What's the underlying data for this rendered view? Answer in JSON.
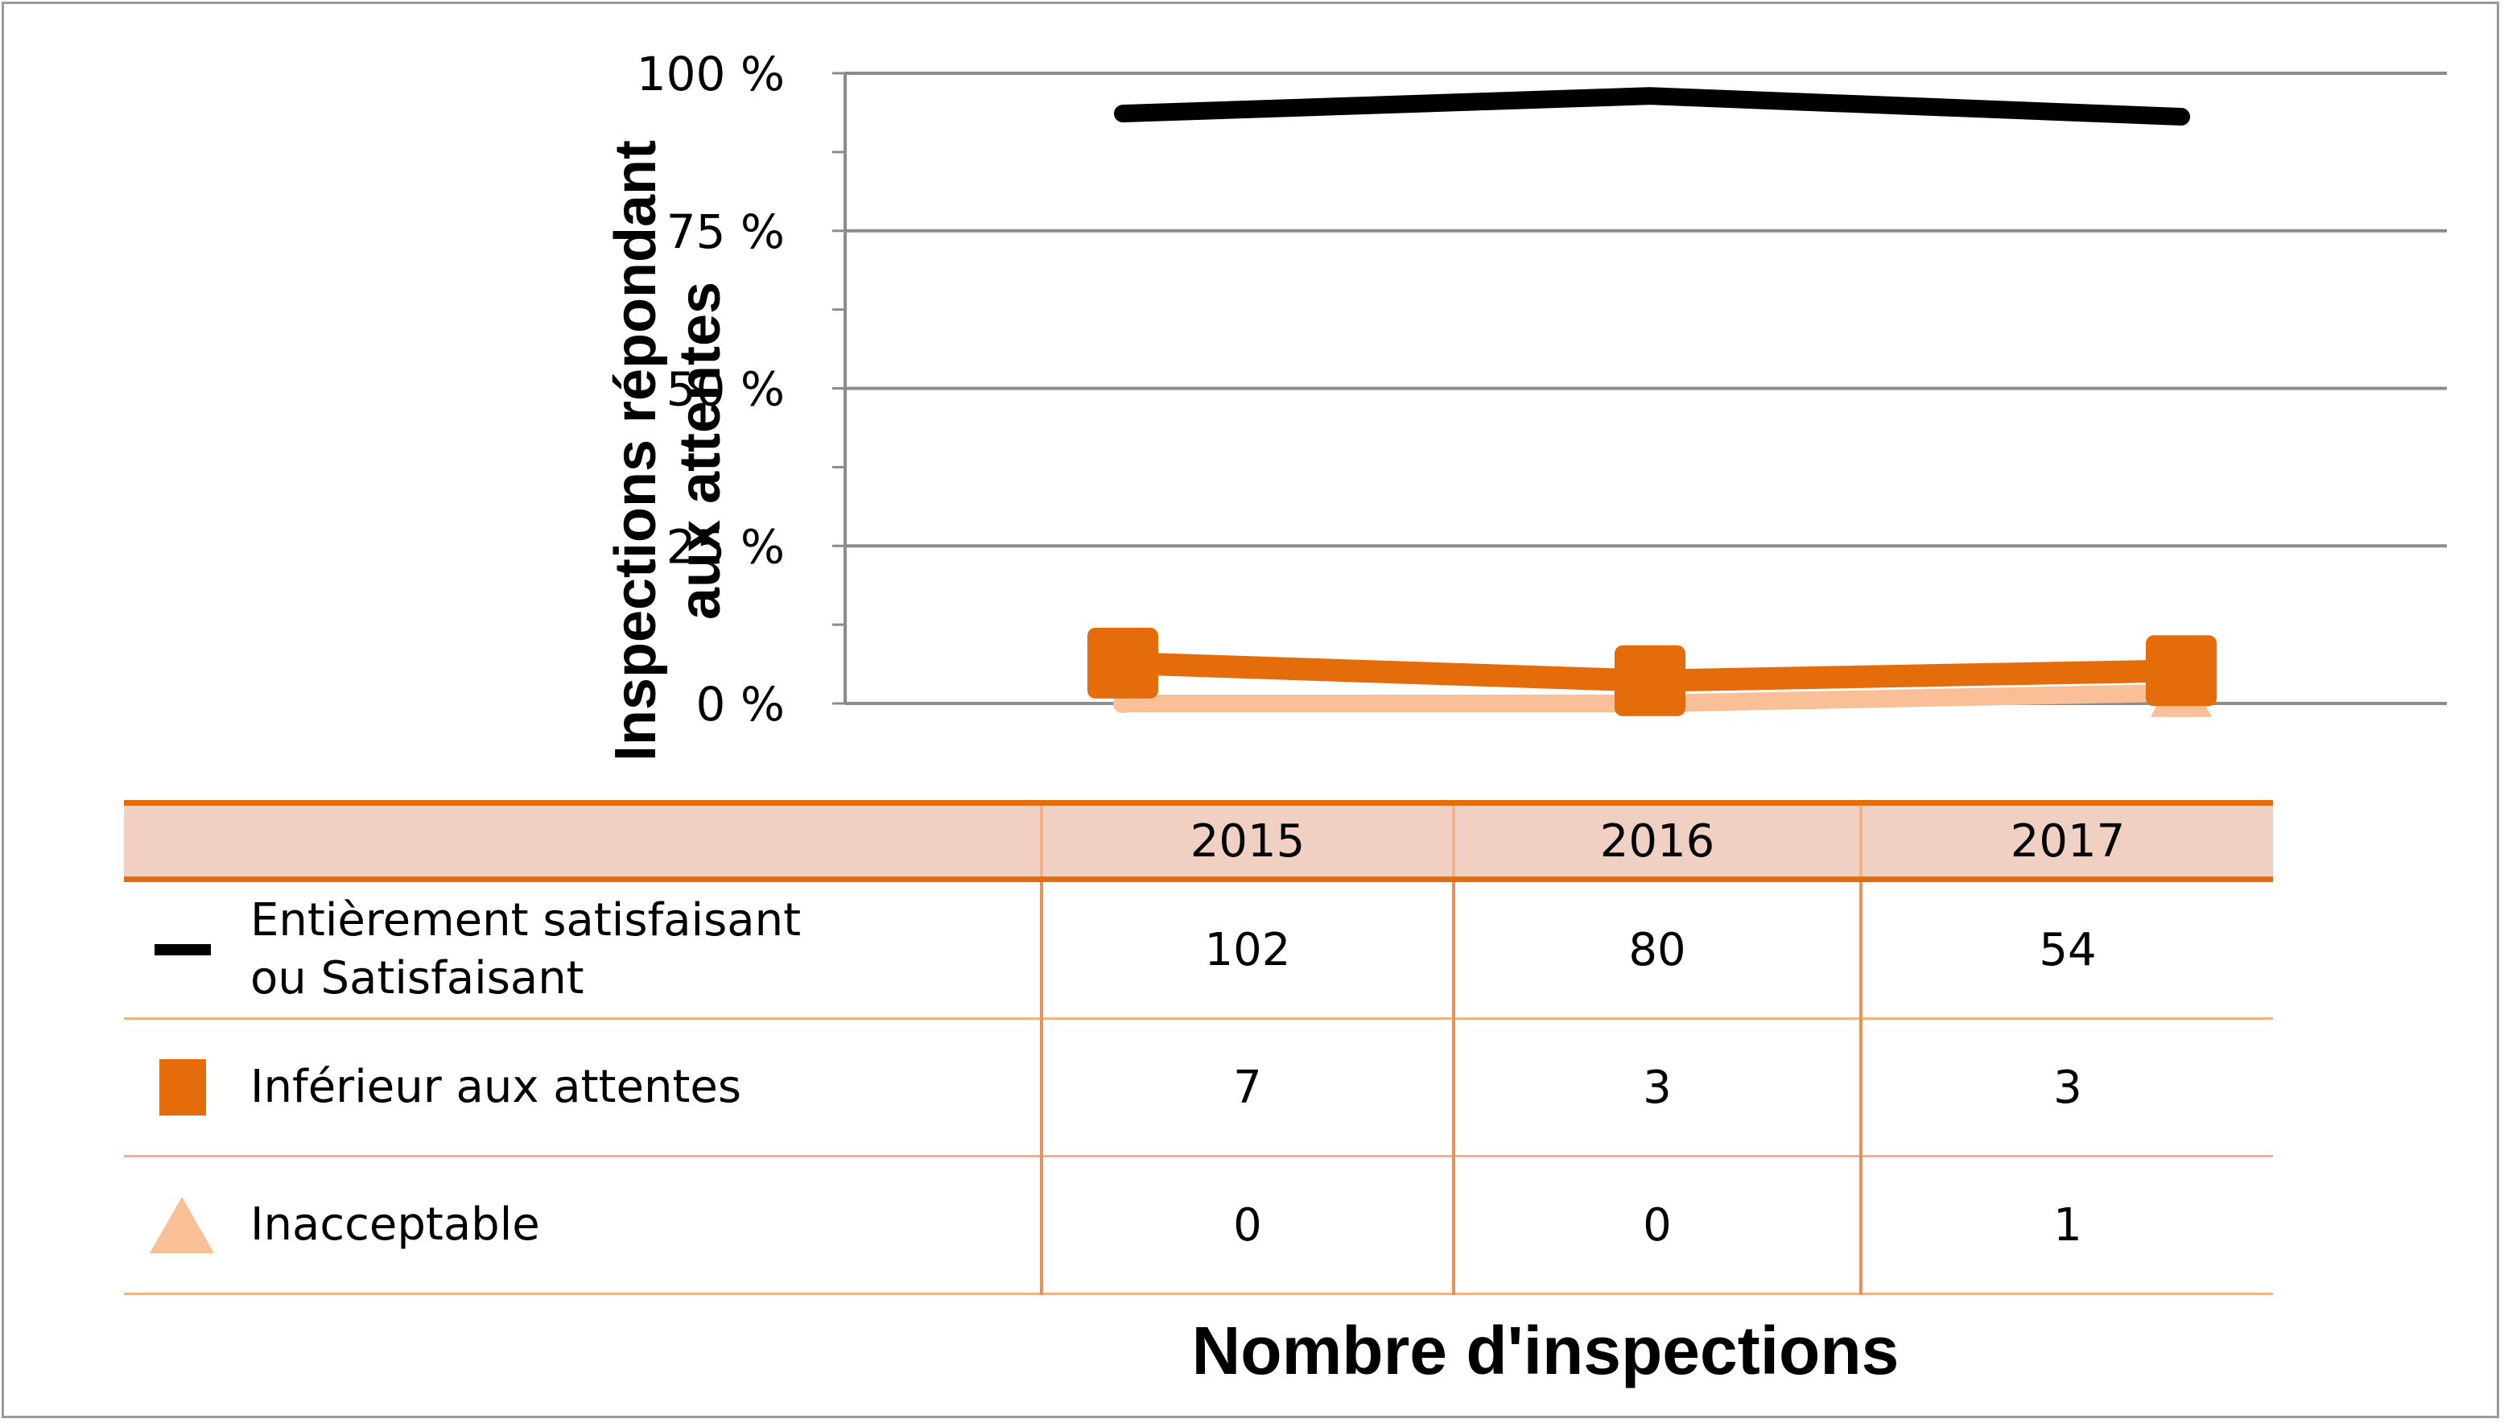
{
  "chart_data": {
    "type": "line",
    "ylabel_lines": [
      "Inspections répondant",
      "aux attentes"
    ],
    "xlabel": "Nombre d'inspections",
    "y_ticks": [
      "0 %",
      "25 %",
      "50 %",
      "75 %",
      "100 %"
    ],
    "y_tick_values": [
      0,
      25,
      50,
      75,
      100
    ],
    "ylim": [
      0,
      100
    ],
    "categories": [
      "2015",
      "2016",
      "2017"
    ],
    "grid": true,
    "series": [
      {
        "name_lines": [
          "Entièrement satisfaisant",
          "ou Satisfaisant"
        ],
        "counts": [
          "102",
          "80",
          "54"
        ],
        "values": [
          93.6,
          96.4,
          93.1
        ],
        "color": "#000000",
        "marker": "line"
      },
      {
        "name_lines": [
          "Inférieur aux attentes"
        ],
        "counts": [
          "7",
          "3",
          "3"
        ],
        "values": [
          6.4,
          3.6,
          5.2
        ],
        "color": "#e46c0a",
        "marker": "square"
      },
      {
        "name_lines": [
          "Inacceptable"
        ],
        "counts": [
          "0",
          "0",
          "1"
        ],
        "values": [
          0,
          0,
          1.7
        ],
        "color": "#f9bf96",
        "marker": "triangle"
      }
    ]
  }
}
